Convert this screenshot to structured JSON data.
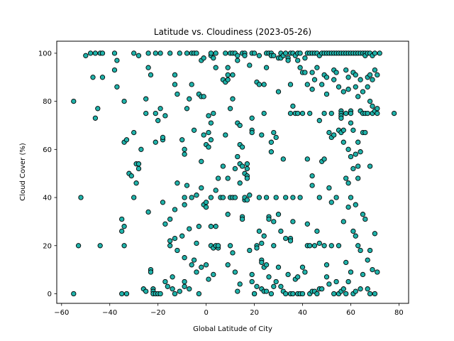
{
  "chart_data": {
    "type": "scatter",
    "title": "Latitude vs. Cloudiness (2023-05-26)",
    "xlabel": "Global Latitude of City",
    "ylabel": "Cloud Cover (%)",
    "xlim": [
      -62,
      84
    ],
    "ylim": [
      -4,
      105
    ],
    "xticks": [
      -60,
      -40,
      -20,
      0,
      20,
      40,
      60,
      80
    ],
    "yticks": [
      0,
      20,
      40,
      60,
      80,
      100
    ],
    "marker_color": "#20b2aa",
    "marker_edge": "#000000",
    "grid": false,
    "points": [
      [
        -55,
        80
      ],
      [
        -55,
        0
      ],
      [
        -53,
        20
      ],
      [
        -52,
        40
      ],
      [
        -50,
        99
      ],
      [
        -48,
        100
      ],
      [
        -47,
        90
      ],
      [
        -46,
        73
      ],
      [
        -46,
        100
      ],
      [
        -45,
        77
      ],
      [
        -44,
        100
      ],
      [
        -44,
        20
      ],
      [
        -43,
        90
      ],
      [
        -43,
        100
      ],
      [
        -38,
        100
      ],
      [
        -38,
        93
      ],
      [
        -37,
        86
      ],
      [
        -37,
        97
      ],
      [
        -35,
        31
      ],
      [
        -35,
        26
      ],
      [
        -35,
        0
      ],
      [
        -34,
        80
      ],
      [
        -34,
        63
      ],
      [
        -34,
        28
      ],
      [
        -34,
        20
      ],
      [
        -33,
        64
      ],
      [
        -33,
        0
      ],
      [
        -32,
        50
      ],
      [
        -31,
        49
      ],
      [
        -30,
        100
      ],
      [
        -30,
        67
      ],
      [
        -30,
        40
      ],
      [
        -29,
        54
      ],
      [
        -29,
        46
      ],
      [
        -28,
        99
      ],
      [
        -28,
        52
      ],
      [
        -28,
        54
      ],
      [
        -27,
        60
      ],
      [
        -26,
        2
      ],
      [
        -25,
        81
      ],
      [
        -25,
        75
      ],
      [
        -25,
        1
      ],
      [
        -24,
        100
      ],
      [
        -24,
        94
      ],
      [
        -24,
        34
      ],
      [
        -23,
        91
      ],
      [
        -23,
        10
      ],
      [
        -23,
        9
      ],
      [
        -22,
        2
      ],
      [
        -22,
        1
      ],
      [
        -22,
        0
      ],
      [
        -21,
        100
      ],
      [
        -21,
        75
      ],
      [
        -21,
        63
      ],
      [
        -21,
        0
      ],
      [
        -20,
        72
      ],
      [
        -20,
        0
      ],
      [
        -19,
        100
      ],
      [
        -19,
        77
      ],
      [
        -19,
        0
      ],
      [
        -18,
        64
      ],
      [
        -18,
        65
      ],
      [
        -18,
        38
      ],
      [
        -17,
        74
      ],
      [
        -17,
        29
      ],
      [
        -17,
        5
      ],
      [
        -16,
        3
      ],
      [
        -15,
        100
      ],
      [
        -15,
        20
      ],
      [
        -15,
        22
      ],
      [
        -15,
        31
      ],
      [
        -14,
        7
      ],
      [
        -14,
        2
      ],
      [
        -13,
        91
      ],
      [
        -13,
        87
      ],
      [
        -13,
        35
      ],
      [
        -13,
        23
      ],
      [
        -13,
        0
      ],
      [
        -12,
        83
      ],
      [
        -12,
        46
      ],
      [
        -12,
        18
      ],
      [
        -11,
        100
      ],
      [
        -11,
        1
      ],
      [
        -10,
        64
      ],
      [
        -10,
        24
      ],
      [
        -9,
        60
      ],
      [
        -9,
        58
      ],
      [
        -9,
        37
      ],
      [
        -9,
        40
      ],
      [
        -9,
        15
      ],
      [
        -9,
        5
      ],
      [
        -9,
        3
      ],
      [
        -8,
        100
      ],
      [
        -8,
        77
      ],
      [
        -8,
        45
      ],
      [
        -7,
        81
      ],
      [
        -7,
        27
      ],
      [
        -7,
        2
      ],
      [
        -6,
        100
      ],
      [
        -6,
        87
      ],
      [
        -6,
        40
      ],
      [
        -6,
        12
      ],
      [
        -5,
        100
      ],
      [
        -5,
        68
      ],
      [
        -5,
        14
      ],
      [
        -4,
        100
      ],
      [
        -4,
        41
      ],
      [
        -4,
        21
      ],
      [
        -4,
        9
      ],
      [
        -3,
        83
      ],
      [
        -3,
        28
      ],
      [
        -3,
        0
      ],
      [
        -2,
        82
      ],
      [
        -2,
        97
      ],
      [
        -2,
        55
      ],
      [
        -2,
        44
      ],
      [
        -2,
        11
      ],
      [
        -1,
        82
      ],
      [
        -1,
        66
      ],
      [
        -1,
        37
      ],
      [
        -1,
        98
      ],
      [
        0,
        62
      ],
      [
        0,
        38
      ],
      [
        0,
        36
      ],
      [
        0,
        12
      ],
      [
        1,
        74
      ],
      [
        1,
        67
      ],
      [
        1,
        61
      ],
      [
        1,
        6
      ],
      [
        2,
        99
      ],
      [
        2,
        100
      ],
      [
        2,
        71
      ],
      [
        2,
        64
      ],
      [
        2,
        40
      ],
      [
        2,
        28
      ],
      [
        2,
        20
      ],
      [
        3,
        98
      ],
      [
        3,
        75
      ],
      [
        3,
        19
      ],
      [
        3,
        8
      ],
      [
        4,
        94
      ],
      [
        4,
        100
      ],
      [
        4,
        43
      ],
      [
        4,
        28
      ],
      [
        4,
        20
      ],
      [
        5,
        48
      ],
      [
        5,
        19
      ],
      [
        5,
        20
      ],
      [
        6,
        40
      ],
      [
        7,
        89
      ],
      [
        7,
        53
      ],
      [
        7,
        40
      ],
      [
        8,
        100
      ],
      [
        8,
        88
      ],
      [
        8,
        66
      ],
      [
        9,
        89
      ],
      [
        9,
        94
      ],
      [
        9,
        91
      ],
      [
        9,
        12
      ],
      [
        9,
        48
      ],
      [
        9,
        33
      ],
      [
        10,
        100
      ],
      [
        10,
        77
      ],
      [
        10,
        20
      ],
      [
        10,
        40
      ],
      [
        11,
        100
      ],
      [
        11,
        91
      ],
      [
        11,
        81
      ],
      [
        11,
        17
      ],
      [
        11,
        40
      ],
      [
        12,
        52
      ],
      [
        12,
        40
      ],
      [
        12,
        9
      ],
      [
        12,
        100
      ],
      [
        13,
        99
      ],
      [
        13,
        97
      ],
      [
        13,
        57
      ],
      [
        13,
        71
      ],
      [
        13,
        1
      ],
      [
        14,
        4
      ],
      [
        14,
        62
      ],
      [
        14,
        54
      ],
      [
        14,
        46
      ],
      [
        14,
        70
      ],
      [
        15,
        100
      ],
      [
        15,
        61
      ],
      [
        15,
        53
      ],
      [
        15,
        32
      ],
      [
        15,
        31
      ],
      [
        16,
        100
      ],
      [
        16,
        99
      ],
      [
        16,
        39
      ],
      [
        16,
        40
      ],
      [
        16,
        50
      ],
      [
        17,
        54
      ],
      [
        17,
        49
      ],
      [
        17,
        48
      ],
      [
        17,
        52
      ],
      [
        17,
        39
      ],
      [
        18,
        95
      ],
      [
        18,
        41
      ],
      [
        18,
        18
      ],
      [
        19,
        100
      ],
      [
        19,
        73
      ],
      [
        19,
        68
      ],
      [
        19,
        67
      ],
      [
        19,
        8
      ],
      [
        19,
        5
      ],
      [
        20,
        100
      ],
      [
        20,
        0
      ],
      [
        20,
        0
      ],
      [
        21,
        88
      ],
      [
        21,
        20
      ],
      [
        21,
        3
      ],
      [
        21,
        19
      ],
      [
        22,
        99
      ],
      [
        22,
        87
      ],
      [
        22,
        26
      ],
      [
        22,
        40
      ],
      [
        23,
        66
      ],
      [
        23,
        21
      ],
      [
        23,
        14
      ],
      [
        23,
        13
      ],
      [
        23,
        2
      ],
      [
        24,
        87
      ],
      [
        24,
        75
      ],
      [
        24,
        24
      ],
      [
        24,
        11
      ],
      [
        24,
        1
      ],
      [
        25,
        100
      ],
      [
        25,
        94
      ],
      [
        25,
        40
      ],
      [
        25,
        12
      ],
      [
        25,
        1
      ],
      [
        26,
        100
      ],
      [
        26,
        32
      ],
      [
        26,
        31
      ],
      [
        26,
        7
      ],
      [
        27,
        100
      ],
      [
        27,
        99
      ],
      [
        27,
        63
      ],
      [
        27,
        59
      ],
      [
        27,
        0
      ],
      [
        28,
        99
      ],
      [
        28,
        67
      ],
      [
        28,
        30
      ],
      [
        28,
        20
      ],
      [
        28,
        3
      ],
      [
        29,
        65
      ],
      [
        29,
        40
      ],
      [
        29,
        5
      ],
      [
        30,
        84
      ],
      [
        30,
        98
      ],
      [
        30,
        33
      ],
      [
        30,
        11
      ],
      [
        31,
        100
      ],
      [
        31,
        98
      ],
      [
        31,
        26
      ],
      [
        31,
        3
      ],
      [
        32,
        99
      ],
      [
        32,
        56
      ],
      [
        32,
        1
      ],
      [
        33,
        100
      ],
      [
        33,
        0
      ],
      [
        33,
        23
      ],
      [
        33,
        40
      ],
      [
        34,
        98
      ],
      [
        34,
        97
      ],
      [
        34,
        8
      ],
      [
        35,
        100
      ],
      [
        35,
        87
      ],
      [
        35,
        75
      ],
      [
        35,
        23
      ],
      [
        35,
        22
      ],
      [
        35,
        0
      ],
      [
        36,
        100
      ],
      [
        36,
        78
      ],
      [
        36,
        40
      ],
      [
        36,
        30
      ],
      [
        36,
        0
      ],
      [
        37,
        99
      ],
      [
        37,
        75
      ],
      [
        37,
        6
      ],
      [
        38,
        100
      ],
      [
        38,
        97
      ],
      [
        38,
        75
      ],
      [
        38,
        7
      ],
      [
        38,
        0
      ],
      [
        39,
        100
      ],
      [
        39,
        94
      ],
      [
        39,
        40
      ],
      [
        39,
        0
      ],
      [
        40,
        92
      ],
      [
        40,
        75
      ],
      [
        40,
        11
      ],
      [
        40,
        0
      ],
      [
        41,
        98
      ],
      [
        41,
        92
      ],
      [
        41,
        9
      ],
      [
        42,
        100
      ],
      [
        42,
        87
      ],
      [
        42,
        56
      ],
      [
        42,
        29
      ],
      [
        42,
        20
      ],
      [
        43,
        100
      ],
      [
        43,
        0
      ],
      [
        43,
        75
      ],
      [
        43,
        20
      ],
      [
        44,
        100
      ],
      [
        44,
        92
      ],
      [
        44,
        85
      ],
      [
        44,
        49
      ],
      [
        44,
        45
      ],
      [
        44,
        1
      ],
      [
        45,
        100
      ],
      [
        45,
        89
      ],
      [
        45,
        20
      ],
      [
        45,
        1
      ],
      [
        46,
        100
      ],
      [
        46,
        94
      ],
      [
        46,
        26
      ],
      [
        46,
        0
      ],
      [
        47,
        99
      ],
      [
        47,
        72
      ],
      [
        47,
        40
      ],
      [
        47,
        21
      ],
      [
        47,
        2
      ],
      [
        48,
        100
      ],
      [
        48,
        87
      ],
      [
        48,
        55
      ],
      [
        48,
        2
      ],
      [
        49,
        100
      ],
      [
        49,
        91
      ],
      [
        49,
        75
      ],
      [
        49,
        56
      ],
      [
        49,
        20
      ],
      [
        50,
        100
      ],
      [
        50,
        90
      ],
      [
        50,
        83
      ],
      [
        50,
        12
      ],
      [
        50,
        7
      ],
      [
        51,
        100
      ],
      [
        51,
        67
      ],
      [
        51,
        44
      ],
      [
        51,
        4
      ],
      [
        52,
        100
      ],
      [
        52,
        75
      ],
      [
        52,
        65
      ],
      [
        52,
        38
      ],
      [
        52,
        20
      ],
      [
        53,
        100
      ],
      [
        53,
        93
      ],
      [
        53,
        89
      ],
      [
        53,
        66
      ],
      [
        53,
        0
      ],
      [
        54,
        100
      ],
      [
        54,
        92
      ],
      [
        54,
        40
      ],
      [
        54,
        5
      ],
      [
        55,
        100
      ],
      [
        55,
        86
      ],
      [
        55,
        68
      ],
      [
        55,
        20
      ],
      [
        55,
        0
      ],
      [
        56,
        100
      ],
      [
        56,
        76
      ],
      [
        56,
        75
      ],
      [
        56,
        74
      ],
      [
        56,
        73
      ],
      [
        56,
        67
      ],
      [
        56,
        1
      ],
      [
        57,
        100
      ],
      [
        57,
        84
      ],
      [
        57,
        68
      ],
      [
        57,
        63
      ],
      [
        57,
        30
      ],
      [
        57,
        2
      ],
      [
        58,
        100
      ],
      [
        58,
        93
      ],
      [
        58,
        75
      ],
      [
        58,
        48
      ],
      [
        58,
        13
      ],
      [
        58,
        0
      ],
      [
        59,
        100
      ],
      [
        59,
        90
      ],
      [
        59,
        85
      ],
      [
        59,
        60
      ],
      [
        59,
        46
      ],
      [
        59,
        36
      ],
      [
        59,
        5
      ],
      [
        60,
        100
      ],
      [
        60,
        76
      ],
      [
        60,
        75
      ],
      [
        60,
        71
      ],
      [
        60,
        57
      ],
      [
        60,
        40
      ],
      [
        60,
        9
      ],
      [
        61,
        100
      ],
      [
        61,
        92
      ],
      [
        61,
        68
      ],
      [
        61,
        52
      ],
      [
        61,
        26
      ],
      [
        61,
        0
      ],
      [
        62,
        100
      ],
      [
        62,
        91
      ],
      [
        62,
        86
      ],
      [
        62,
        58
      ],
      [
        62,
        37
      ],
      [
        62,
        24
      ],
      [
        62,
        1
      ],
      [
        63,
        100
      ],
      [
        63,
        82
      ],
      [
        63,
        63
      ],
      [
        63,
        53
      ],
      [
        63,
        48
      ],
      [
        63,
        20
      ],
      [
        64,
        100
      ],
      [
        64,
        89
      ],
      [
        64,
        76
      ],
      [
        64,
        59
      ],
      [
        64,
        18
      ],
      [
        64,
        2
      ],
      [
        65,
        100
      ],
      [
        65,
        84
      ],
      [
        65,
        75
      ],
      [
        65,
        67
      ],
      [
        65,
        33
      ],
      [
        65,
        8
      ],
      [
        66,
        100
      ],
      [
        66,
        99
      ],
      [
        66,
        75
      ],
      [
        66,
        67
      ],
      [
        66,
        31
      ],
      [
        67,
        100
      ],
      [
        67,
        90
      ],
      [
        67,
        86
      ],
      [
        67,
        75
      ],
      [
        67,
        14
      ],
      [
        67,
        2
      ],
      [
        68,
        100
      ],
      [
        68,
        91
      ],
      [
        68,
        80
      ],
      [
        68,
        53
      ],
      [
        68,
        18
      ],
      [
        68,
        0
      ],
      [
        69,
        99
      ],
      [
        69,
        89
      ],
      [
        69,
        78
      ],
      [
        69,
        75
      ],
      [
        69,
        10
      ],
      [
        70,
        100
      ],
      [
        70,
        93
      ],
      [
        70,
        76
      ],
      [
        70,
        25
      ],
      [
        70,
        0
      ],
      [
        71,
        91
      ],
      [
        71,
        77
      ],
      [
        71,
        75
      ],
      [
        71,
        9
      ],
      [
        72,
        100
      ],
      [
        78,
        75
      ]
    ]
  }
}
